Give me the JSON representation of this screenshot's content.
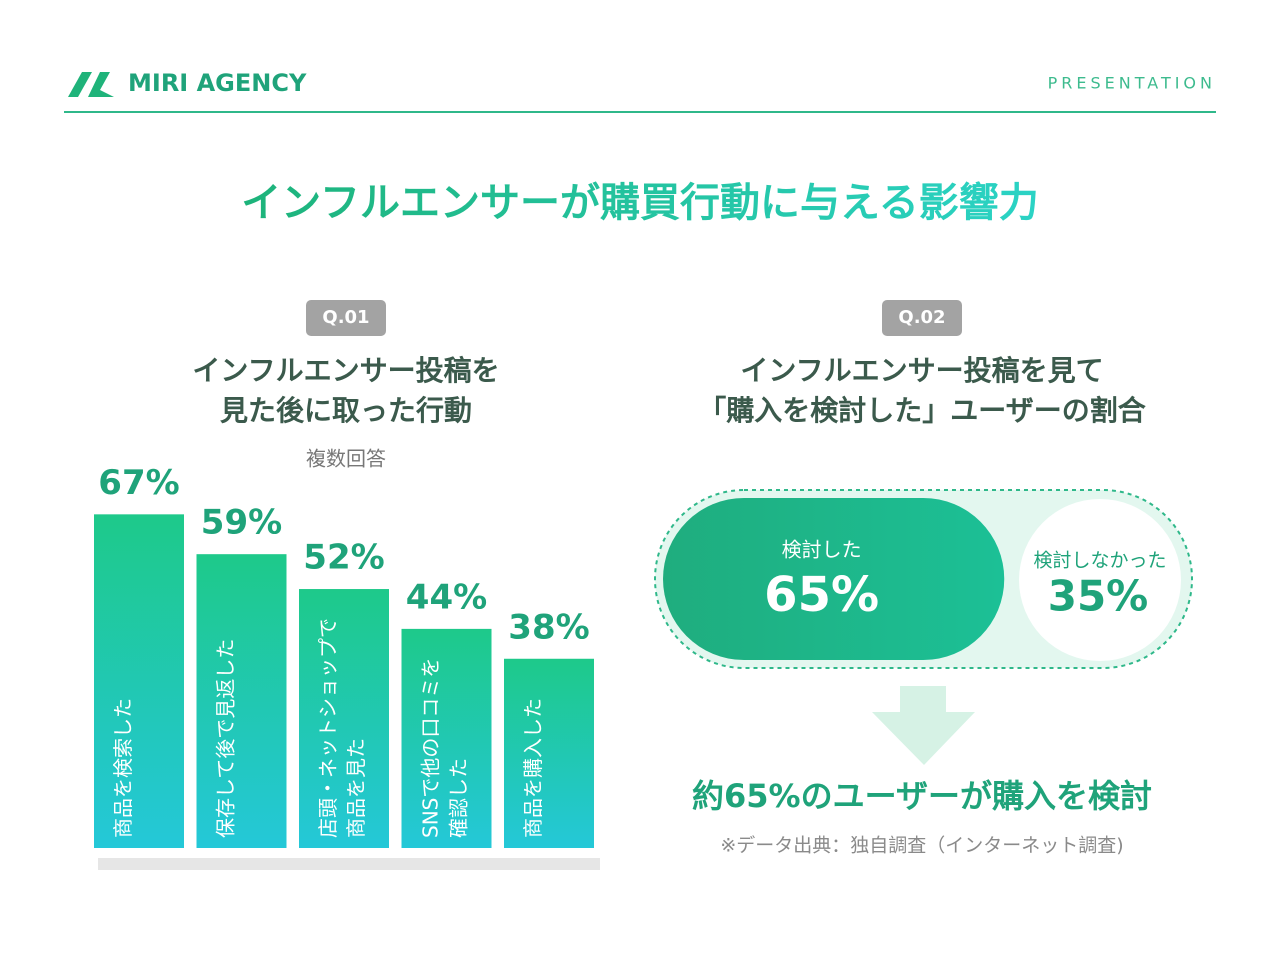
{
  "header": {
    "brand": "MIRI AGENCY",
    "label": "PRESENTATION"
  },
  "title": "インフルエンサーが購買行動に与える影響力",
  "chart_data": [
    {
      "type": "bar",
      "badge": "Q.01",
      "title": [
        "インフルエンサー投稿を",
        "見た後に取った行動"
      ],
      "subtitle": "複数回答",
      "categories": [
        "商品を検索した",
        "保存して後で見返した",
        "店頭・ネットショップで\n商品を見た",
        "SNSで他の口コミを\n確認した",
        "商品を購入した"
      ],
      "values": [
        67,
        59,
        52,
        44,
        38
      ],
      "value_labels": [
        "67%",
        "59%",
        "52%",
        "44%",
        "38%"
      ],
      "color": "#1ec98a"
    },
    {
      "type": "proportion",
      "badge": "Q.02",
      "title": [
        "インフルエンサー投稿を見て",
        "「購入を検討した」ユーザーの割合"
      ],
      "categories": [
        "検討した",
        "検討しなかった"
      ],
      "values": [
        65,
        35
      ],
      "value_labels": [
        "65%",
        "35%"
      ],
      "color": "#1aae82"
    }
  ],
  "conclusion": "約65%のユーザーが購入を検討",
  "note": "※データ出典：独自調査（インターネット調査)"
}
